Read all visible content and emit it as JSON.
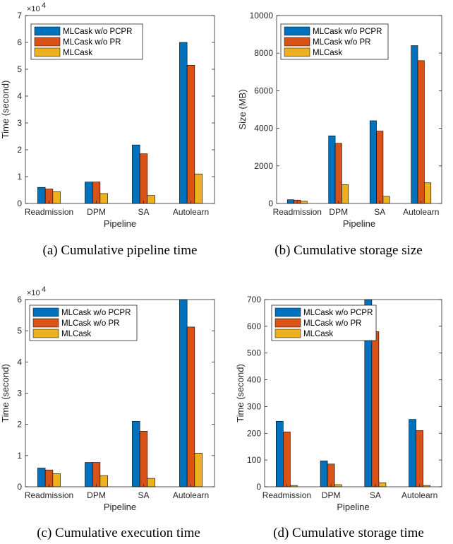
{
  "colors": {
    "s0": "#0072BD",
    "s1": "#D95319",
    "s2": "#EDB120"
  },
  "chart_data": [
    {
      "type": "bar",
      "caption": "(a)  Cumulative pipeline time",
      "categories": [
        "Readmission",
        "DPM",
        "SA",
        "Autolearn"
      ],
      "series": [
        {
          "name": "MLCask w/o PCPR",
          "values": [
            6000,
            8000,
            21800,
            60000
          ]
        },
        {
          "name": "MLCask w/o PR",
          "values": [
            5400,
            8000,
            18500,
            51500
          ]
        },
        {
          "name": "MLCask",
          "values": [
            4400,
            3700,
            3000,
            11000
          ]
        }
      ],
      "xlabel": "Pipeline",
      "ylabel": "Time (second)",
      "ylim": [
        0,
        70000
      ],
      "yticks": [
        0,
        10000,
        20000,
        30000,
        40000,
        50000,
        60000,
        70000
      ],
      "ytick_labels": [
        "0",
        "1",
        "2",
        "3",
        "4",
        "5",
        "6",
        "7"
      ],
      "exponent_base": "×10",
      "exponent_power": "4",
      "legend": "top-left"
    },
    {
      "type": "bar",
      "caption": "(b)  Cumulative storage size",
      "categories": [
        "Readmission",
        "DPM",
        "SA",
        "Autolearn"
      ],
      "series": [
        {
          "name": "MLCask w/o PCPR",
          "values": [
            200,
            3600,
            4400,
            8400
          ]
        },
        {
          "name": "MLCask w/o PR",
          "values": [
            180,
            3200,
            3850,
            7600
          ]
        },
        {
          "name": "MLCask",
          "values": [
            120,
            1000,
            380,
            1100
          ]
        }
      ],
      "xlabel": "Pipeline",
      "ylabel": "Size (MB)",
      "ylim": [
        0,
        10000
      ],
      "yticks": [
        0,
        2000,
        4000,
        6000,
        8000,
        10000
      ],
      "ytick_labels": [
        "0",
        "2000",
        "4000",
        "6000",
        "8000",
        "10000"
      ],
      "exponent_base": null,
      "exponent_power": null,
      "legend": "top-left"
    },
    {
      "type": "bar",
      "caption": "(c)  Cumulative execution time",
      "categories": [
        "Readmission",
        "DPM",
        "SA",
        "Autolearn"
      ],
      "series": [
        {
          "name": "MLCask w/o PCPR",
          "values": [
            6000,
            7800,
            21000,
            60000
          ]
        },
        {
          "name": "MLCask w/o PR",
          "values": [
            5400,
            7800,
            17800,
            51200
          ]
        },
        {
          "name": "MLCask",
          "values": [
            4200,
            3600,
            2700,
            10800
          ]
        }
      ],
      "xlabel": "Pipeline",
      "ylabel": "Time (second)",
      "ylim": [
        0,
        60000
      ],
      "yticks": [
        0,
        10000,
        20000,
        30000,
        40000,
        50000,
        60000
      ],
      "ytick_labels": [
        "0",
        "1",
        "2",
        "3",
        "4",
        "5",
        "6"
      ],
      "exponent_base": "×10",
      "exponent_power": "4",
      "legend": "top-left"
    },
    {
      "type": "bar",
      "caption": "(d)  Cumulative storage time",
      "categories": [
        "Readmission",
        "DPM",
        "SA",
        "Autolearn"
      ],
      "series": [
        {
          "name": "MLCask w/o PCPR",
          "values": [
            245,
            97,
            700,
            252
          ]
        },
        {
          "name": "MLCask w/o PR",
          "values": [
            205,
            85,
            580,
            210
          ]
        },
        {
          "name": "MLCask",
          "values": [
            5,
            8,
            15,
            5
          ]
        }
      ],
      "xlabel": "Pipeline",
      "ylabel": "Time (second)",
      "ylim": [
        0,
        700
      ],
      "yticks": [
        0,
        100,
        200,
        300,
        400,
        500,
        600,
        700
      ],
      "ytick_labels": [
        "0",
        "100",
        "200",
        "300",
        "400",
        "500",
        "600",
        "700"
      ],
      "exponent_base": null,
      "exponent_power": null,
      "legend": "top-left"
    }
  ]
}
